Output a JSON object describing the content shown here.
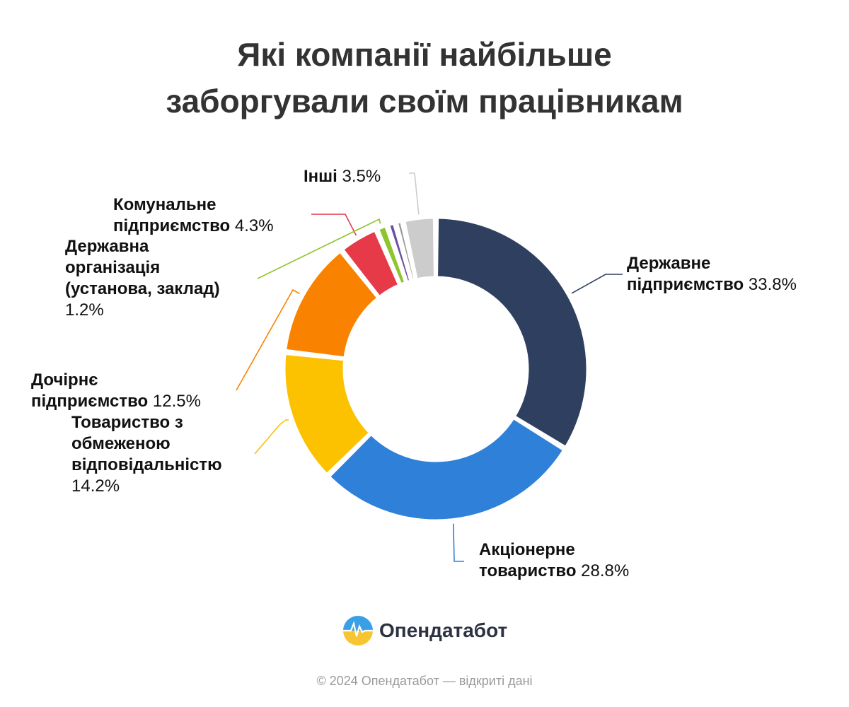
{
  "title_line1": "Які компанії найбільше",
  "title_line2": "заборгували своїм працівникам",
  "chart_data": {
    "type": "pie",
    "variant": "donut",
    "title": "Які компанії найбільше заборгували своїм працівникам",
    "slices": [
      {
        "label": "Державне підприємство",
        "value": 33.8,
        "value_label": "33.8%",
        "color": "#2f3f5f"
      },
      {
        "label": "Акціонерне товариство",
        "value": 28.8,
        "value_label": "28.8%",
        "color": "#2f80d9"
      },
      {
        "label": "Товариство з обмеженою відповідальністю",
        "value": 14.2,
        "value_label": "14.2%",
        "color": "#fcc200"
      },
      {
        "label": "Дочірнє підприємство",
        "value": 12.5,
        "value_label": "12.5%",
        "color": "#f98300"
      },
      {
        "label": "Комунальне підприємство",
        "value": 4.3,
        "value_label": "4.3%",
        "color": "#e63a48"
      },
      {
        "label": "Державна організація (установа, заклад)",
        "value": 1.2,
        "value_label": "1.2%",
        "color": "#8ec52e"
      },
      {
        "label": "",
        "value": 0.9,
        "value_label": "",
        "color": "#6a4fa0"
      },
      {
        "label": "",
        "value": 0.8,
        "value_label": "",
        "color": "#9a9a9a"
      },
      {
        "label": "Інші",
        "value": 3.5,
        "value_label": "3.5%",
        "color": "#cccccc"
      }
    ],
    "legend": "none"
  },
  "labels": {
    "derzh": {
      "l1": "Державне",
      "l2": "підприємство",
      "pct": "33.8%"
    },
    "akts": {
      "l1": "Акціонерне",
      "l2": "товариство",
      "pct": "28.8%"
    },
    "tov": {
      "l1": "Товариство з",
      "l2": "обмеженою",
      "l3": "відповідальністю",
      "pct": "14.2%"
    },
    "doch": {
      "l1": "Дочірнє",
      "l2": "підприємство",
      "pct": "12.5%"
    },
    "derzhorg": {
      "l1": "Державна",
      "l2": "організація",
      "l3": "(установа, заклад)",
      "pct": "1.2%"
    },
    "komun": {
      "l1": "Комунальне",
      "l2": "підприємство",
      "pct": "4.3%"
    },
    "inshi": {
      "l1": "Інші",
      "pct": "3.5%"
    }
  },
  "brand": {
    "name": "Опендатабот",
    "icon": "opendatabot-logo-icon"
  },
  "footer": "© 2024 Опендатабот — відкриті дані"
}
